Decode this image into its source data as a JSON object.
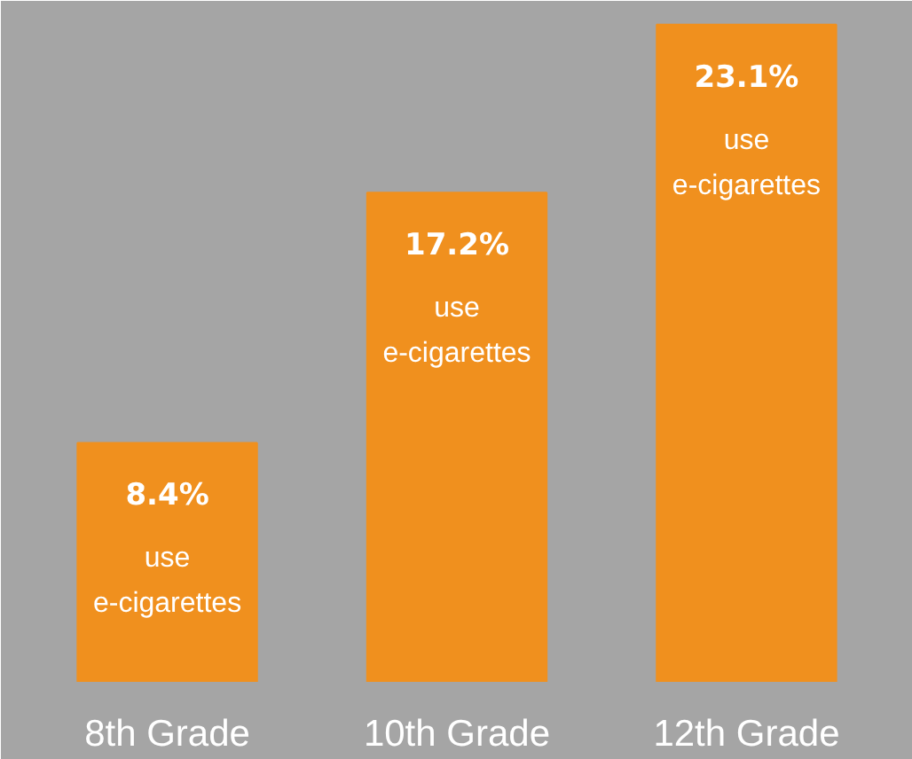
{
  "chart_data": {
    "type": "bar",
    "categories": [
      "8th Grade",
      "10th Grade",
      "12th Grade"
    ],
    "values": [
      8.4,
      17.2,
      23.1
    ],
    "color": "#f0901e",
    "value_labels": [
      "8.4%",
      "17.2%",
      "23.1%"
    ],
    "annotations": [
      "use e-cigarettes",
      "use e-cigarettes",
      "use e-cigarettes"
    ]
  }
}
